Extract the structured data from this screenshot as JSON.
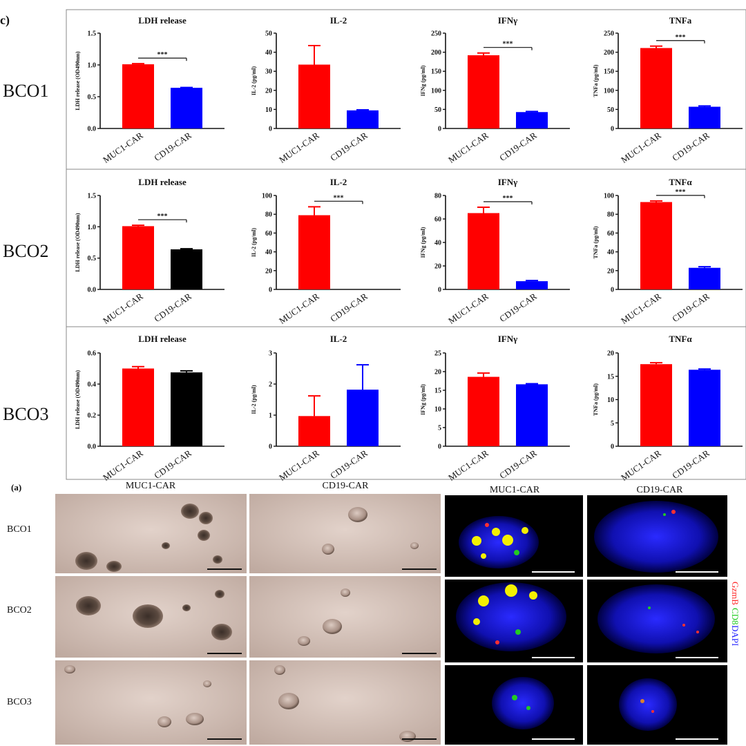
{
  "figure": {
    "panel_c_label": "c)",
    "panel_a_label": "(a)",
    "row_labels": [
      "BCO1",
      "BCO2",
      "BCO3"
    ],
    "image_columns": [
      "MUC1-CAR",
      "CD19-CAR",
      "MUC1-CAR",
      "CD19-CAR"
    ],
    "image_rows": [
      "BCO1",
      "BCO2",
      "BCO3"
    ],
    "fluorescence_legend": [
      {
        "text": "GzmB",
        "color": "#ff2a2a"
      },
      {
        "text": "CD8",
        "color": "#22cc22"
      },
      {
        "text": "DAPI",
        "color": "#2222ff"
      }
    ],
    "colors": {
      "muc1": "#ff0000",
      "cd19_blue": "#0000ff",
      "cd19_black": "#000000"
    }
  },
  "chart_data": [
    {
      "row": "BCO1",
      "type": "bar",
      "title": "LDH release",
      "ylabel": "LDH release (OD490nm)",
      "categories": [
        "MUC1-CAR",
        "CD19-CAR"
      ],
      "values": [
        1.01,
        0.64
      ],
      "errors": [
        0.01,
        0.005
      ],
      "ylim": [
        0,
        1.5
      ],
      "ticks": [
        "0.0",
        "0.5",
        "1.0",
        "1.5"
      ],
      "bar_colors": [
        "#ff0000",
        "#0000ff"
      ],
      "significance": "***"
    },
    {
      "row": "BCO1",
      "type": "bar",
      "title": "IL-2",
      "ylabel": "IL-2 (pg/ml)",
      "categories": [
        "MUC1-CAR",
        "CD19-CAR"
      ],
      "values": [
        33.5,
        9.5
      ],
      "errors": [
        10,
        0.3
      ],
      "ylim": [
        0,
        50
      ],
      "ticks": [
        "0",
        "10",
        "20",
        "30",
        "40",
        "50"
      ],
      "bar_colors": [
        "#ff0000",
        "#0000ff"
      ],
      "significance": ""
    },
    {
      "row": "BCO1",
      "type": "bar",
      "title": "IFNγ",
      "ylabel": "IFNg (pg/ml)",
      "categories": [
        "MUC1-CAR",
        "CD19-CAR"
      ],
      "values": [
        192,
        43
      ],
      "errors": [
        6,
        1.5
      ],
      "ylim": [
        0,
        250
      ],
      "ticks": [
        "0",
        "50",
        "100",
        "150",
        "200",
        "250"
      ],
      "bar_colors": [
        "#ff0000",
        "#0000ff"
      ],
      "significance": "***"
    },
    {
      "row": "BCO1",
      "type": "bar",
      "title": "TNFa",
      "ylabel": "TNFa (pg/ml)",
      "categories": [
        "MUC1-CAR",
        "CD19-CAR"
      ],
      "values": [
        211,
        57
      ],
      "errors": [
        5,
        2
      ],
      "ylim": [
        0,
        250
      ],
      "ticks": [
        "0",
        "50",
        "100",
        "150",
        "200",
        "250"
      ],
      "bar_colors": [
        "#ff0000",
        "#0000ff"
      ],
      "significance": "***"
    },
    {
      "row": "BCO2",
      "type": "bar",
      "title": "LDH release",
      "ylabel": "LDH release (OD490nm)",
      "categories": [
        "MUC1-CAR",
        "CD19-CAR"
      ],
      "values": [
        1.01,
        0.64
      ],
      "errors": [
        0.015,
        0.01
      ],
      "ylim": [
        0,
        1.5
      ],
      "ticks": [
        "0.0",
        "0.5",
        "1.0",
        "1.5"
      ],
      "bar_colors": [
        "#ff0000",
        "#000000"
      ],
      "significance": "***"
    },
    {
      "row": "BCO2",
      "type": "bar",
      "title": "IL-2",
      "ylabel": "IL-2 (pg/ml)",
      "categories": [
        "MUC1-CAR",
        "CD19-CAR"
      ],
      "values": [
        79,
        0
      ],
      "errors": [
        9,
        0
      ],
      "ylim": [
        0,
        100
      ],
      "ticks": [
        "0",
        "20",
        "40",
        "60",
        "80",
        "100"
      ],
      "bar_colors": [
        "#ff0000",
        "#0000ff"
      ],
      "significance": "***"
    },
    {
      "row": "BCO2",
      "type": "bar",
      "title": "IFNγ",
      "ylabel": "IFNg (pg/ml)",
      "categories": [
        "MUC1-CAR",
        "CD19-CAR"
      ],
      "values": [
        65,
        7
      ],
      "errors": [
        5,
        0.6
      ],
      "ylim": [
        0,
        80
      ],
      "ticks": [
        "0",
        "20",
        "40",
        "60",
        "80"
      ],
      "bar_colors": [
        "#ff0000",
        "#0000ff"
      ],
      "significance": "***"
    },
    {
      "row": "BCO2",
      "type": "bar",
      "title": "TNFα",
      "ylabel": "TNFa (pg/ml)",
      "categories": [
        "MUC1-CAR",
        "CD19-CAR"
      ],
      "values": [
        93,
        23
      ],
      "errors": [
        1.2,
        1.2
      ],
      "ylim": [
        0,
        100
      ],
      "ticks": [
        "0",
        "20",
        "40",
        "60",
        "80",
        "100"
      ],
      "bar_colors": [
        "#ff0000",
        "#0000ff"
      ],
      "significance": "***"
    },
    {
      "row": "BCO3",
      "type": "bar",
      "title": "LDH release",
      "ylabel": "LDH release (OD490nm)",
      "categories": [
        "MUC1-CAR",
        "CD19-CAR"
      ],
      "values": [
        0.5,
        0.475
      ],
      "errors": [
        0.012,
        0.01
      ],
      "ylim": [
        0,
        0.6
      ],
      "ticks": [
        "0.0",
        "0.2",
        "0.4",
        "0.6"
      ],
      "bar_colors": [
        "#ff0000",
        "#000000"
      ],
      "significance": ""
    },
    {
      "row": "BCO3",
      "type": "bar",
      "title": "IL-2",
      "ylabel": "IL-2 (pg/ml)",
      "categories": [
        "MUC1-CAR",
        "CD19-CAR"
      ],
      "values": [
        0.97,
        1.82
      ],
      "errors": [
        0.65,
        0.8
      ],
      "ylim": [
        0,
        3
      ],
      "ticks": [
        "0",
        "1",
        "2",
        "3"
      ],
      "bar_colors": [
        "#ff0000",
        "#0000ff"
      ],
      "significance": ""
    },
    {
      "row": "BCO3",
      "type": "bar",
      "title": "IFNγ",
      "ylabel": "IFNg (pg/ml)",
      "categories": [
        "MUC1-CAR",
        "CD19-CAR"
      ],
      "values": [
        18.6,
        16.6
      ],
      "errors": [
        1,
        0.15
      ],
      "ylim": [
        0,
        25
      ],
      "ticks": [
        "0",
        "5",
        "10",
        "15",
        "20",
        "25"
      ],
      "bar_colors": [
        "#ff0000",
        "#0000ff"
      ],
      "significance": ""
    },
    {
      "row": "BCO3",
      "type": "bar",
      "title": "TNFα",
      "ylabel": "TNFa (pg/ml)",
      "categories": [
        "MUC1-CAR",
        "CD19-CAR"
      ],
      "values": [
        17.6,
        16.4
      ],
      "errors": [
        0.3,
        0.15
      ],
      "ylim": [
        0,
        20
      ],
      "ticks": [
        "0",
        "5",
        "10",
        "15",
        "20"
      ],
      "bar_colors": [
        "#ff0000",
        "#0000ff"
      ],
      "significance": ""
    }
  ]
}
